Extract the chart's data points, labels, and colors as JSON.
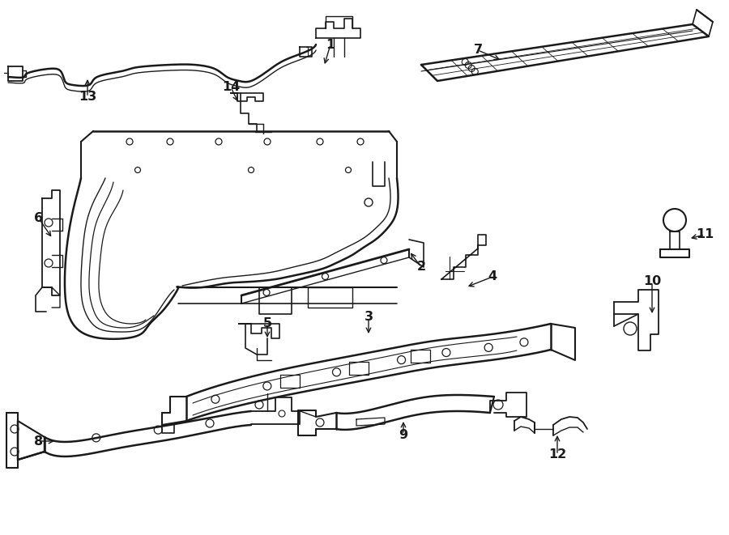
{
  "bg_color": "#ffffff",
  "line_color": "#1a1a1a",
  "figsize": [
    9.0,
    6.61
  ],
  "dpi": 100
}
